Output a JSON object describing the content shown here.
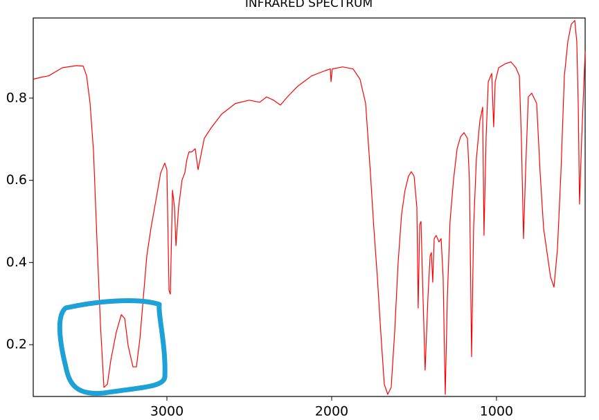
{
  "chart_data": {
    "type": "line",
    "title": "INFRARED SPECTRUM",
    "color": "#ff0000",
    "x": [
      3811,
      3761,
      3718,
      3634,
      3550,
      3508,
      3487,
      3466,
      3445,
      3424,
      3403,
      3382,
      3361,
      3340,
      3307,
      3277,
      3256,
      3235,
      3206,
      3185,
      3164,
      3143,
      3122,
      3097,
      3067,
      3038,
      3013,
      3000,
      2987,
      2979,
      2966,
      2954,
      2945,
      2929,
      2908,
      2891,
      2878,
      2866,
      2849,
      2828,
      2811,
      2794,
      2773,
      2731,
      2668,
      2584,
      2500,
      2437,
      2395,
      2353,
      2311,
      2269,
      2206,
      2122,
      2038,
      2008,
      2004,
      1996,
      1933,
      1870,
      1828,
      1794,
      1765,
      1744,
      1723,
      1702,
      1681,
      1660,
      1639,
      1618,
      1597,
      1576,
      1555,
      1534,
      1517,
      1500,
      1483,
      1475,
      1466,
      1458,
      1450,
      1433,
      1416,
      1403,
      1395,
      1387,
      1378,
      1366,
      1349,
      1336,
      1324,
      1311,
      1298,
      1282,
      1261,
      1239,
      1218,
      1197,
      1176,
      1164,
      1151,
      1139,
      1122,
      1101,
      1084,
      1076,
      1063,
      1050,
      1029,
      1017,
      1008,
      987,
      945,
      912,
      882,
      861,
      849,
      836,
      824,
      807,
      786,
      756,
      735,
      714,
      693,
      672,
      651,
      630,
      609,
      588,
      567,
      546,
      525,
      513,
      504,
      496,
      483,
      462
    ],
    "values": [
      0.846,
      0.851,
      0.854,
      0.874,
      0.879,
      0.878,
      0.854,
      0.787,
      0.669,
      0.45,
      0.247,
      0.096,
      0.104,
      0.163,
      0.23,
      0.273,
      0.264,
      0.197,
      0.146,
      0.146,
      0.214,
      0.315,
      0.416,
      0.483,
      0.551,
      0.618,
      0.642,
      0.626,
      0.332,
      0.323,
      0.576,
      0.534,
      0.441,
      0.534,
      0.601,
      0.618,
      0.652,
      0.669,
      0.669,
      0.677,
      0.626,
      0.66,
      0.702,
      0.728,
      0.761,
      0.787,
      0.795,
      0.79,
      0.803,
      0.795,
      0.783,
      0.803,
      0.829,
      0.854,
      0.867,
      0.871,
      0.84,
      0.871,
      0.876,
      0.871,
      0.846,
      0.787,
      0.618,
      0.483,
      0.365,
      0.23,
      0.104,
      0.079,
      0.096,
      0.23,
      0.399,
      0.517,
      0.576,
      0.61,
      0.621,
      0.61,
      0.534,
      0.289,
      0.492,
      0.5,
      0.374,
      0.138,
      0.315,
      0.416,
      0.424,
      0.352,
      0.458,
      0.466,
      0.45,
      0.458,
      0.365,
      0.079,
      0.315,
      0.5,
      0.601,
      0.677,
      0.706,
      0.716,
      0.702,
      0.601,
      0.171,
      0.483,
      0.652,
      0.744,
      0.778,
      0.466,
      0.706,
      0.84,
      0.86,
      0.73,
      0.84,
      0.874,
      0.884,
      0.888,
      0.874,
      0.854,
      0.702,
      0.458,
      0.618,
      0.803,
      0.812,
      0.787,
      0.618,
      0.483,
      0.424,
      0.365,
      0.34,
      0.433,
      0.618,
      0.854,
      0.938,
      0.98,
      0.989,
      0.938,
      0.787,
      0.542,
      0.702,
      0.913
    ],
    "xlim": [
      3811,
      462
    ],
    "xticks": [
      3000,
      2000,
      1000
    ],
    "ylim": [
      0.074,
      0.995
    ],
    "yticks": [
      0.2,
      0.4,
      0.6,
      0.8
    ]
  }
}
